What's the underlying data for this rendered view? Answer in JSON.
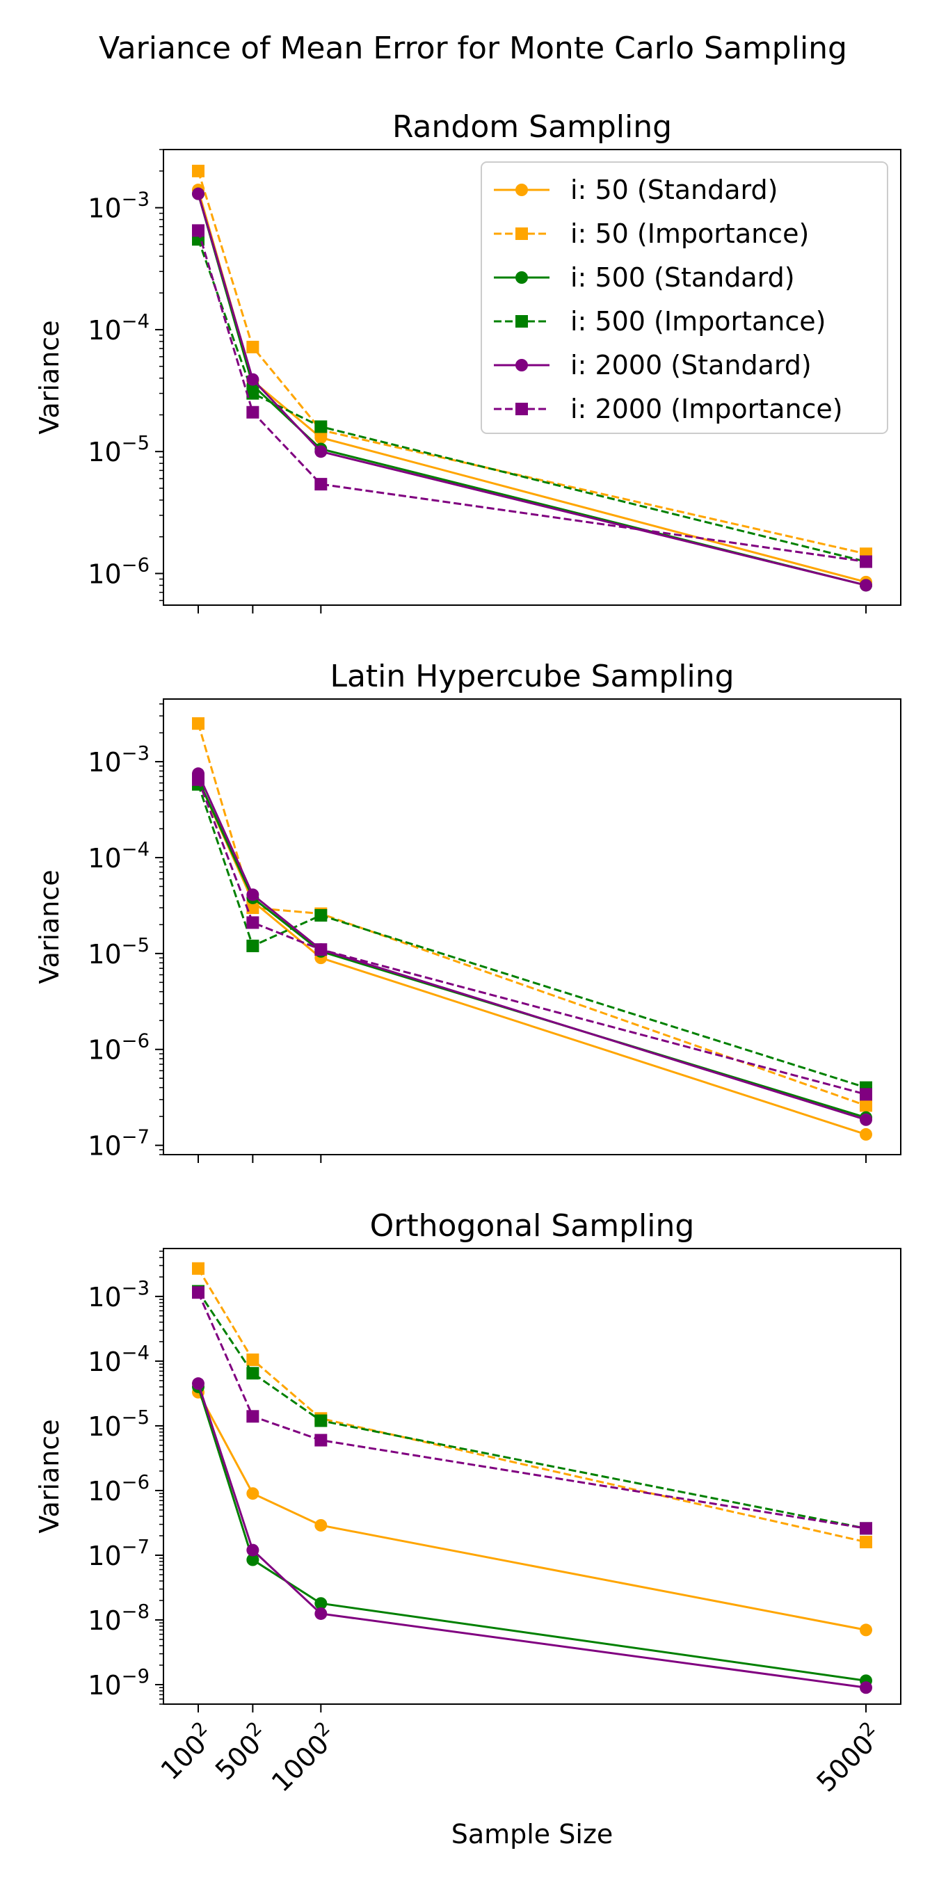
{
  "figure": {
    "title": "Variance of Mean Error for Monte Carlo Sampling"
  },
  "chart_data": [
    {
      "type": "line",
      "title": "Random Sampling",
      "xlabel": "",
      "ylabel": "Variance",
      "yscale": "log",
      "ylim": [
        5.5e-07,
        0.003
      ],
      "x": [
        10000,
        250000,
        1000000,
        25000000
      ],
      "x_tick_labels": [
        "100²",
        "500²",
        "1000²",
        "5000²"
      ],
      "grid": false,
      "legend": "top-right",
      "series": [
        {
          "name": "i: 50 (Standard)",
          "color": "#FFA500",
          "style": "solid",
          "marker": "circle",
          "values": [
            0.0014,
            3.8e-05,
            1.3e-05,
            8.5e-07
          ]
        },
        {
          "name": "i: 50 (Importance)",
          "color": "#FFA500",
          "style": "dashed",
          "marker": "square",
          "values": [
            0.002,
            7.2e-05,
            1.5e-05,
            1.45e-06
          ]
        },
        {
          "name": "i: 500 (Standard)",
          "color": "#008000",
          "style": "solid",
          "marker": "circle",
          "values": [
            0.0013,
            3.5e-05,
            1.05e-05,
            8e-07
          ]
        },
        {
          "name": "i: 500 (Importance)",
          "color": "#008000",
          "style": "dashed",
          "marker": "square",
          "values": [
            0.00055,
            3e-05,
            1.6e-05,
            1.25e-06
          ]
        },
        {
          "name": "i: 2000 (Standard)",
          "color": "#800080",
          "style": "solid",
          "marker": "circle",
          "values": [
            0.0013,
            3.9e-05,
            1e-05,
            8e-07
          ]
        },
        {
          "name": "i: 2000 (Importance)",
          "color": "#800080",
          "style": "dashed",
          "marker": "square",
          "values": [
            0.00065,
            2.1e-05,
            5.4e-06,
            1.25e-06
          ]
        }
      ]
    },
    {
      "type": "line",
      "title": "Latin Hypercube Sampling",
      "xlabel": "",
      "ylabel": "Variance",
      "yscale": "log",
      "ylim": [
        8e-08,
        0.0045
      ],
      "x": [
        10000,
        250000,
        1000000,
        25000000
      ],
      "x_tick_labels": [
        "100²",
        "500²",
        "1000²",
        "5000²"
      ],
      "grid": false,
      "series": [
        {
          "name": "i: 50 (Standard)",
          "color": "#FFA500",
          "style": "solid",
          "marker": "circle",
          "values": [
            0.00065,
            3.5e-05,
            9e-06,
            1.3e-07
          ]
        },
        {
          "name": "i: 50 (Importance)",
          "color": "#FFA500",
          "style": "dashed",
          "marker": "square",
          "values": [
            0.0025,
            3e-05,
            2.6e-05,
            2.6e-07
          ]
        },
        {
          "name": "i: 500 (Standard)",
          "color": "#008000",
          "style": "solid",
          "marker": "circle",
          "values": [
            0.00065,
            3.8e-05,
            1.05e-05,
            1.95e-07
          ]
        },
        {
          "name": "i: 500 (Importance)",
          "color": "#008000",
          "style": "dashed",
          "marker": "square",
          "values": [
            0.00058,
            1.2e-05,
            2.5e-05,
            4e-07
          ]
        },
        {
          "name": "i: 2000 (Standard)",
          "color": "#800080",
          "style": "solid",
          "marker": "circle",
          "values": [
            0.00075,
            4.1e-05,
            1.1e-05,
            1.85e-07
          ]
        },
        {
          "name": "i: 2000 (Importance)",
          "color": "#800080",
          "style": "dashed",
          "marker": "square",
          "values": [
            0.00065,
            2.1e-05,
            1.1e-05,
            3.4e-07
          ]
        }
      ]
    },
    {
      "type": "line",
      "title": "Orthogonal Sampling",
      "xlabel": "Sample Size",
      "ylabel": "Variance",
      "yscale": "log",
      "ylim": [
        5e-10,
        0.0055
      ],
      "x": [
        10000,
        250000,
        1000000,
        25000000
      ],
      "x_tick_labels": [
        "100²",
        "500²",
        "1000²",
        "5000²"
      ],
      "grid": false,
      "series": [
        {
          "name": "i: 50 (Standard)",
          "color": "#FFA500",
          "style": "solid",
          "marker": "circle",
          "values": [
            3.3e-05,
            9e-07,
            2.9e-07,
            7e-09
          ]
        },
        {
          "name": "i: 50 (Importance)",
          "color": "#FFA500",
          "style": "dashed",
          "marker": "square",
          "values": [
            0.0027,
            0.000105,
            1.3e-05,
            1.6e-07
          ]
        },
        {
          "name": "i: 500 (Standard)",
          "color": "#008000",
          "style": "solid",
          "marker": "circle",
          "values": [
            4e-05,
            8.5e-08,
            1.8e-08,
            1.15e-09
          ]
        },
        {
          "name": "i: 500 (Importance)",
          "color": "#008000",
          "style": "dashed",
          "marker": "square",
          "values": [
            0.0012,
            6.5e-05,
            1.2e-05,
            2.6e-07
          ]
        },
        {
          "name": "i: 2000 (Standard)",
          "color": "#800080",
          "style": "solid",
          "marker": "circle",
          "values": [
            4.5e-05,
            1.2e-07,
            1.25e-08,
            9e-10
          ]
        },
        {
          "name": "i: 2000 (Importance)",
          "color": "#800080",
          "style": "dashed",
          "marker": "square",
          "values": [
            0.00115,
            1.4e-05,
            6e-06,
            2.6e-07
          ]
        }
      ]
    }
  ]
}
